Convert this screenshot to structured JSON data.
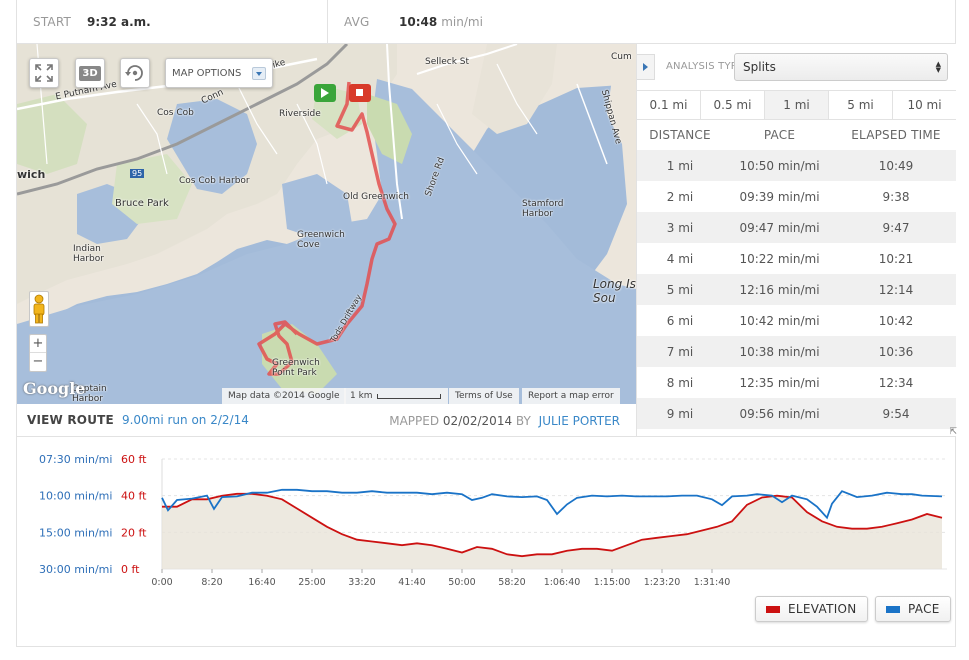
{
  "stats": {
    "start_label": "START",
    "start_value": "9:32 a.m.",
    "avg_label": "AVG",
    "avg_value": "10:48",
    "avg_unit": "min/mi"
  },
  "map": {
    "options_label": "MAP OPTIONS",
    "btn_3d": "3D",
    "labels": [
      "Selleck St",
      "E Putnam Ave",
      "Riverside",
      "Cos Cob",
      "Cos Cob Harbor",
      "wich",
      "95",
      "Bruce Park",
      "Indian Harbor",
      "Old Greenwich",
      "Shore Rd",
      "Stamford Harbor",
      "Shippan Ave",
      "Greenwich Cove",
      "Long Is Sou",
      "Tods Driftway",
      "Greenwich Point Park",
      "Captain Harbor",
      "pike",
      "Conn",
      "Cum"
    ],
    "footer": {
      "data": "Map data ©2014 Google",
      "scale": "1 km",
      "terms": "Terms of Use",
      "report": "Report a map error"
    },
    "google_logo": "Google",
    "zoom_in": "+",
    "zoom_out": "−"
  },
  "route": {
    "label": "VIEW ROUTE",
    "link": "9.00mi run on 2/2/14",
    "mapped_label": "MAPPED",
    "mapped_date": "02/02/2014",
    "by_label": "BY",
    "user": "JULIE PORTER"
  },
  "panel": {
    "analysis_label": "ANALYSIS TYPE:",
    "analysis_value": "Splits",
    "tabs": [
      {
        "label": "0.1 mi",
        "active": false
      },
      {
        "label": "0.5 mi",
        "active": false
      },
      {
        "label": "1 mi",
        "active": true
      },
      {
        "label": "5 mi",
        "active": false
      },
      {
        "label": "10 mi",
        "active": false
      }
    ],
    "columns": [
      "DISTANCE",
      "PACE",
      "ELAPSED TIME"
    ],
    "rows": [
      [
        "1 mi",
        "10:50 min/mi",
        "10:49"
      ],
      [
        "2 mi",
        "09:39 min/mi",
        "9:38"
      ],
      [
        "3 mi",
        "09:47 min/mi",
        "9:47"
      ],
      [
        "4 mi",
        "10:22 min/mi",
        "10:21"
      ],
      [
        "5 mi",
        "12:16 min/mi",
        "12:14"
      ],
      [
        "6 mi",
        "10:42 min/mi",
        "10:42"
      ],
      [
        "7 mi",
        "10:38 min/mi",
        "10:36"
      ],
      [
        "8 mi",
        "12:35 min/mi",
        "12:34"
      ],
      [
        "9 mi",
        "09:56 min/mi",
        "9:54"
      ]
    ]
  },
  "chart_data": {
    "type": "line",
    "pace_axis_labels": [
      "07:30 min/mi",
      "10:00 min/mi",
      "15:00 min/mi",
      "30:00 min/mi"
    ],
    "elevation_axis_labels": [
      "60 ft",
      "40 ft",
      "20 ft",
      "0 ft"
    ],
    "x_tick_labels": [
      "0:00",
      "8:20",
      "16:40",
      "25:00",
      "33:20",
      "41:40",
      "50:00",
      "58:20",
      "1:06:40",
      "1:15:00",
      "1:23:20",
      "1:31:40"
    ],
    "x_max_seconds": 5850,
    "series": [
      {
        "name": "ELEVATION",
        "color": "#cc1111",
        "unit": "ft",
        "points": [
          [
            0,
            34
          ],
          [
            150,
            34
          ],
          [
            300,
            38
          ],
          [
            450,
            38
          ],
          [
            600,
            40
          ],
          [
            750,
            41
          ],
          [
            900,
            41
          ],
          [
            1050,
            40
          ],
          [
            1200,
            38
          ],
          [
            1350,
            33
          ],
          [
            1500,
            28
          ],
          [
            1650,
            23
          ],
          [
            1800,
            19
          ],
          [
            1950,
            16
          ],
          [
            2100,
            15
          ],
          [
            2250,
            14
          ],
          [
            2400,
            13
          ],
          [
            2550,
            14
          ],
          [
            2700,
            13
          ],
          [
            2850,
            11
          ],
          [
            3000,
            9
          ],
          [
            3150,
            12
          ],
          [
            3300,
            11
          ],
          [
            3450,
            8
          ],
          [
            3600,
            7
          ],
          [
            3750,
            8
          ],
          [
            3900,
            8
          ],
          [
            4050,
            10
          ],
          [
            4200,
            11
          ],
          [
            4350,
            11
          ],
          [
            4500,
            10
          ],
          [
            4650,
            13
          ],
          [
            4800,
            16
          ],
          [
            4950,
            17
          ],
          [
            5100,
            18
          ],
          [
            5250,
            19
          ],
          [
            5400,
            21
          ],
          [
            5550,
            23
          ],
          [
            5700,
            26
          ],
          [
            5850,
            35
          ],
          [
            6000,
            39
          ],
          [
            6150,
            40
          ],
          [
            6300,
            39
          ],
          [
            6450,
            31
          ],
          [
            6600,
            26
          ],
          [
            6750,
            23
          ],
          [
            6900,
            22
          ],
          [
            7050,
            22
          ],
          [
            7200,
            23
          ],
          [
            7350,
            25
          ],
          [
            7500,
            27
          ],
          [
            7650,
            30
          ],
          [
            7800,
            28
          ]
        ]
      },
      {
        "name": "PACE",
        "color": "#1a73c7",
        "unit": "min/mi",
        "points": [
          [
            0,
            10.3
          ],
          [
            60,
            12.0
          ],
          [
            150,
            10.6
          ],
          [
            300,
            10.4
          ],
          [
            450,
            10.0
          ],
          [
            520,
            11.8
          ],
          [
            600,
            10.2
          ],
          [
            750,
            10.1
          ],
          [
            900,
            9.8
          ],
          [
            1050,
            9.8
          ],
          [
            1200,
            9.6
          ],
          [
            1350,
            9.6
          ],
          [
            1500,
            9.7
          ],
          [
            1650,
            9.7
          ],
          [
            1800,
            9.8
          ],
          [
            1950,
            9.8
          ],
          [
            2100,
            9.7
          ],
          [
            2250,
            9.8
          ],
          [
            2400,
            9.8
          ],
          [
            2550,
            9.8
          ],
          [
            2700,
            9.9
          ],
          [
            2850,
            9.8
          ],
          [
            3000,
            9.9
          ],
          [
            3100,
            10.6
          ],
          [
            3200,
            10.3
          ],
          [
            3300,
            9.9
          ],
          [
            3450,
            10.1
          ],
          [
            3600,
            10.2
          ],
          [
            3750,
            10.1
          ],
          [
            3850,
            10.6
          ],
          [
            3950,
            12.5
          ],
          [
            4050,
            11.2
          ],
          [
            4150,
            10.3
          ],
          [
            4300,
            10.0
          ],
          [
            4450,
            10.1
          ],
          [
            4600,
            10.0
          ],
          [
            4750,
            10.1
          ],
          [
            4900,
            10.1
          ],
          [
            5050,
            10.1
          ],
          [
            5200,
            10.0
          ],
          [
            5350,
            10.0
          ],
          [
            5500,
            10.5
          ],
          [
            5600,
            11.3
          ],
          [
            5700,
            10.1
          ],
          [
            5850,
            10.0
          ],
          [
            5950,
            9.9
          ],
          [
            6100,
            10.0
          ],
          [
            6200,
            10.9
          ],
          [
            6300,
            10.0
          ],
          [
            6450,
            10.5
          ],
          [
            6550,
            11.5
          ],
          [
            6650,
            13.0
          ],
          [
            6700,
            11.1
          ],
          [
            6800,
            9.7
          ],
          [
            6950,
            10.2
          ],
          [
            7100,
            10.0
          ],
          [
            7250,
            9.8
          ],
          [
            7400,
            9.9
          ],
          [
            7500,
            9.9
          ],
          [
            7600,
            10.0
          ],
          [
            7800,
            10.1
          ]
        ]
      }
    ]
  },
  "legend": {
    "elevation": "ELEVATION",
    "pace": "PACE",
    "elevation_color": "#cc1111",
    "pace_color": "#1a73c7"
  }
}
